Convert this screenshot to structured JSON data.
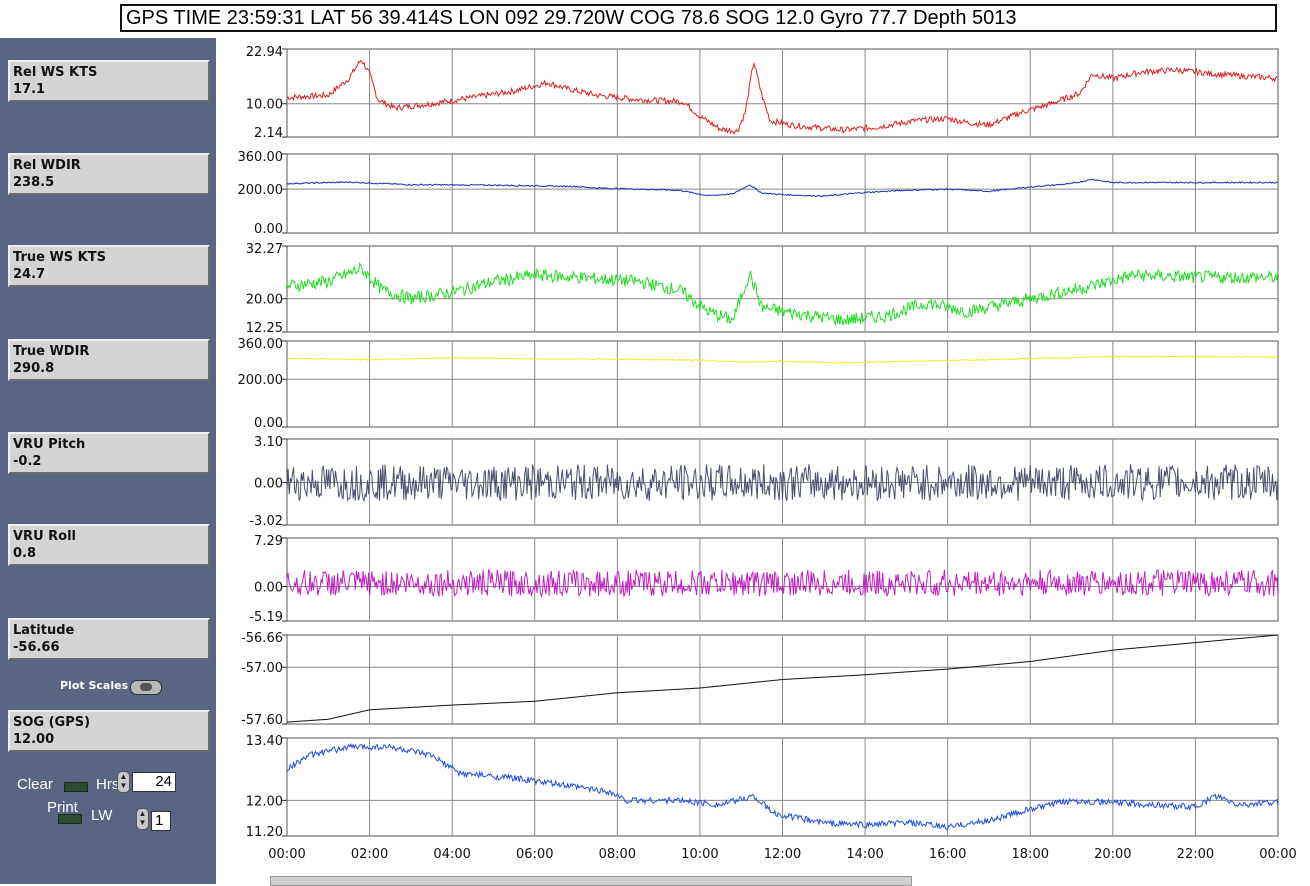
{
  "header": {
    "text": "GPS TIME  23:59:31  LAT 56 39.414S  LON 092 29.720W  COG  78.6  SOG 12.0  Gyro  77.7  Depth 5013"
  },
  "readouts": [
    {
      "label": "Rel WS KTS",
      "value": "17.1"
    },
    {
      "label": "Rel WDIR",
      "value": "238.5"
    },
    {
      "label": "True WS KTS",
      "value": "24.7"
    },
    {
      "label": "True WDIR",
      "value": "290.8"
    },
    {
      "label": "VRU Pitch",
      "value": "-0.2"
    },
    {
      "label": "VRU Roll",
      "value": "0.8"
    },
    {
      "label": "Latitude",
      "value": "-56.66"
    },
    {
      "label": "SOG (GPS)",
      "value": "12.00"
    }
  ],
  "controls": {
    "plot_scales_label": "Plot Scales",
    "clear_label": "Clear",
    "hrs_label": "Hrs",
    "hrs_value": "24",
    "print_label": "Print",
    "lw_label": "LW",
    "lw_value": "1"
  },
  "chart_data": {
    "type": "line",
    "x_tick_labels": [
      "00:00",
      "02:00",
      "04:00",
      "06:00",
      "08:00",
      "10:00",
      "12:00",
      "14:00",
      "16:00",
      "18:00",
      "20:00",
      "22:00",
      "00:00"
    ],
    "x_range_hours": [
      0,
      24
    ],
    "grid": true,
    "panels": [
      {
        "key": "rel_ws",
        "ylim": [
          2.14,
          22.94
        ],
        "yticks": [
          "22.94",
          "10.00",
          "2.14"
        ],
        "ytick_values": [
          22.94,
          10.0,
          2.14
        ],
        "color": "#e02020",
        "points": [
          [
            0,
            11.5
          ],
          [
            1,
            12
          ],
          [
            1.5,
            16
          ],
          [
            1.8,
            20.5
          ],
          [
            2,
            17
          ],
          [
            2.2,
            11
          ],
          [
            2.6,
            9
          ],
          [
            3.5,
            10
          ],
          [
            4.5,
            11.5
          ],
          [
            5.5,
            13
          ],
          [
            6.3,
            15
          ],
          [
            6.8,
            13.5
          ],
          [
            7.5,
            12
          ],
          [
            8.5,
            11
          ],
          [
            9.6,
            10.5
          ],
          [
            10,
            7
          ],
          [
            10.5,
            4
          ],
          [
            10.9,
            3.5
          ],
          [
            11.1,
            8
          ],
          [
            11.3,
            20
          ],
          [
            11.5,
            12
          ],
          [
            11.7,
            6
          ],
          [
            12.2,
            5
          ],
          [
            13,
            4.2
          ],
          [
            13.5,
            3.8
          ],
          [
            14.3,
            4.5
          ],
          [
            15.2,
            6
          ],
          [
            16,
            6.5
          ],
          [
            16.5,
            5.5
          ],
          [
            17,
            5
          ],
          [
            17.8,
            8
          ],
          [
            18.5,
            10
          ],
          [
            19.2,
            12.5
          ],
          [
            19.5,
            17
          ],
          [
            20,
            16
          ],
          [
            20.7,
            17.5
          ],
          [
            21.5,
            18
          ],
          [
            22.5,
            17
          ],
          [
            23.2,
            16.5
          ],
          [
            24,
            16
          ]
        ],
        "noise": 0.7
      },
      {
        "key": "rel_wdir",
        "ylim": [
          0,
          360
        ],
        "yticks": [
          "360.00",
          "200.00",
          "0.00"
        ],
        "ytick_values": [
          360,
          200,
          0
        ],
        "color": "#1a2fb8",
        "points": [
          [
            0,
            225
          ],
          [
            1.5,
            232
          ],
          [
            3,
            220
          ],
          [
            5,
            218
          ],
          [
            7,
            212
          ],
          [
            7.5,
            205
          ],
          [
            9.5,
            195
          ],
          [
            10.2,
            170
          ],
          [
            10.8,
            178
          ],
          [
            11.2,
            220
          ],
          [
            11.5,
            182
          ],
          [
            12,
            175
          ],
          [
            13,
            168
          ],
          [
            14,
            185
          ],
          [
            15,
            195
          ],
          [
            16,
            200
          ],
          [
            17,
            190
          ],
          [
            18,
            210
          ],
          [
            19,
            225
          ],
          [
            19.5,
            245
          ],
          [
            20,
            230
          ],
          [
            22,
            230
          ],
          [
            24,
            230
          ]
        ],
        "noise": 3
      },
      {
        "key": "true_ws",
        "ylim": [
          12.25,
          32.27
        ],
        "yticks": [
          "32.27",
          "20.00",
          "12.25"
        ],
        "ytick_values": [
          32.27,
          20.0,
          12.25
        ],
        "color": "#22dd22",
        "points": [
          [
            0,
            23
          ],
          [
            1,
            24
          ],
          [
            1.8,
            27
          ],
          [
            2.3,
            22
          ],
          [
            3,
            20
          ],
          [
            4,
            21.5
          ],
          [
            5,
            24
          ],
          [
            6,
            25.5
          ],
          [
            7,
            25
          ],
          [
            8.5,
            24
          ],
          [
            9.5,
            22
          ],
          [
            10.2,
            17
          ],
          [
            10.8,
            15
          ],
          [
            11.2,
            26
          ],
          [
            11.5,
            18
          ],
          [
            12,
            17
          ],
          [
            13.5,
            15
          ],
          [
            14.5,
            16
          ],
          [
            15.5,
            19
          ],
          [
            16.5,
            17
          ],
          [
            17.5,
            19
          ],
          [
            18.5,
            21
          ],
          [
            19.5,
            23
          ],
          [
            20.5,
            25.5
          ],
          [
            22,
            25
          ],
          [
            24,
            25
          ]
        ],
        "noise": 1.5
      },
      {
        "key": "true_wdir",
        "ylim": [
          0,
          360
        ],
        "yticks": [
          "360.00",
          "200.00",
          "0.00"
        ],
        "ytick_values": [
          360,
          200,
          0
        ],
        "color": "#eeee22",
        "points": [
          [
            0,
            288
          ],
          [
            2,
            282
          ],
          [
            4,
            290
          ],
          [
            6,
            285
          ],
          [
            8,
            284
          ],
          [
            10,
            280
          ],
          [
            11,
            272
          ],
          [
            12,
            275
          ],
          [
            13.5,
            268
          ],
          [
            15,
            275
          ],
          [
            17,
            282
          ],
          [
            19,
            290
          ],
          [
            20,
            295
          ],
          [
            22,
            294
          ],
          [
            24,
            292
          ]
        ],
        "noise": 2
      },
      {
        "key": "vru_pitch",
        "ylim": [
          -3.02,
          3.1
        ],
        "yticks": [
          "3.10",
          "0.00",
          "-3.02"
        ],
        "ytick_values": [
          3.1,
          0,
          -3.02
        ],
        "color": "#4a5070",
        "points": [
          [
            0,
            0
          ],
          [
            24,
            0
          ]
        ],
        "noise": 1.3
      },
      {
        "key": "vru_roll",
        "ylim": [
          -5.19,
          7.29
        ],
        "yticks": [
          "7.29",
          "0.00",
          "-5.19"
        ],
        "ytick_values": [
          7.29,
          0,
          -5.19
        ],
        "color": "#c020c0",
        "points": [
          [
            0,
            0.5
          ],
          [
            24,
            0.5
          ]
        ],
        "noise": 2
      },
      {
        "key": "latitude",
        "ylim": [
          -57.6,
          -56.66
        ],
        "yticks": [
          "-56.66",
          "-57.00",
          "-57.60"
        ],
        "ytick_values": [
          -56.66,
          -57.0,
          -57.6
        ],
        "color": "#111111",
        "points": [
          [
            0,
            -57.58
          ],
          [
            1,
            -57.55
          ],
          [
            2,
            -57.45
          ],
          [
            4,
            -57.4
          ],
          [
            6,
            -57.36
          ],
          [
            8,
            -57.27
          ],
          [
            10,
            -57.22
          ],
          [
            12,
            -57.13
          ],
          [
            14,
            -57.08
          ],
          [
            16,
            -57.02
          ],
          [
            18,
            -56.94
          ],
          [
            20,
            -56.82
          ],
          [
            22,
            -56.74
          ],
          [
            24,
            -56.66
          ]
        ],
        "noise": 0
      },
      {
        "key": "sog",
        "ylim": [
          11.2,
          13.4
        ],
        "yticks": [
          "13.40",
          "12.00",
          "11.20"
        ],
        "ytick_values": [
          13.4,
          12.0,
          11.2
        ],
        "color": "#2050e0",
        "points": [
          [
            0,
            12.7
          ],
          [
            0.5,
            13
          ],
          [
            1.5,
            13.2
          ],
          [
            2.5,
            13.2
          ],
          [
            3.5,
            13
          ],
          [
            4.2,
            12.6
          ],
          [
            5.5,
            12.5
          ],
          [
            7,
            12.3
          ],
          [
            7.8,
            12.2
          ],
          [
            8.2,
            12
          ],
          [
            9.5,
            12
          ],
          [
            10.5,
            11.9
          ],
          [
            11.3,
            12.1
          ],
          [
            11.8,
            11.7
          ],
          [
            13,
            11.5
          ],
          [
            14,
            11.45
          ],
          [
            15,
            11.5
          ],
          [
            16,
            11.4
          ],
          [
            17,
            11.55
          ],
          [
            18,
            11.8
          ],
          [
            19,
            12
          ],
          [
            20,
            11.95
          ],
          [
            21,
            11.9
          ],
          [
            22,
            11.85
          ],
          [
            22.5,
            12.1
          ],
          [
            23,
            11.9
          ],
          [
            24,
            11.95
          ]
        ],
        "noise": 0.07
      }
    ]
  }
}
